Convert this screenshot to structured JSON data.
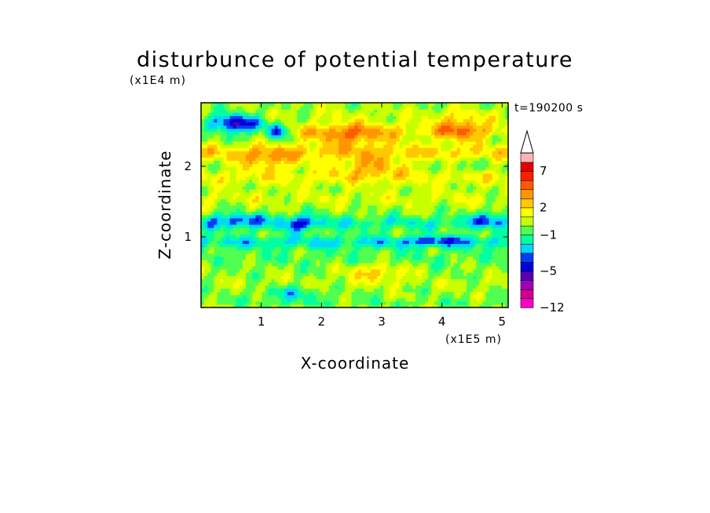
{
  "chart_data": {
    "type": "heatmap",
    "title": "disturbunce of potential temperature",
    "xlabel": "X-coordinate",
    "ylabel": "Z-coordinate",
    "x_unit": "(x1E5 m)",
    "y_unit": "(x1E4 m)",
    "time_label": "t=190200 s",
    "xlim": [
      0,
      5.1
    ],
    "ylim": [
      0,
      2.9
    ],
    "x_ticks": [
      {
        "value": 1,
        "label": "1"
      },
      {
        "value": 2,
        "label": "2"
      },
      {
        "value": 3,
        "label": "3"
      },
      {
        "value": 4,
        "label": "4"
      },
      {
        "value": 5,
        "label": "5"
      }
    ],
    "y_ticks": [
      {
        "value": 1,
        "label": "1"
      },
      {
        "value": 2,
        "label": "2"
      }
    ],
    "colorbar": {
      "levels": [
        -12,
        -10,
        -8,
        -6,
        -5,
        -4,
        -3,
        -2,
        -1,
        0,
        1,
        2,
        3,
        4,
        5,
        7,
        9,
        11
      ],
      "colors": [
        "#ff00c8",
        "#d3008f",
        "#a000bc",
        "#5a00b4",
        "#0000dc",
        "#0040f0",
        "#00d6ff",
        "#00ffa0",
        "#50ff50",
        "#c8ff00",
        "#ffff00",
        "#ffc800",
        "#ff9600",
        "#ff5a00",
        "#ff1e00",
        "#e60000",
        "#ffb4b4"
      ],
      "extend": "max",
      "tick_labels": [
        {
          "value": -12,
          "label": "−12"
        },
        {
          "value": -5,
          "label": "−5"
        },
        {
          "value": -1,
          "label": "−1"
        },
        {
          "value": 2,
          "label": "2"
        },
        {
          "value": 7,
          "label": "7"
        }
      ]
    },
    "features": [
      {
        "cx": 0.55,
        "cz": 2.6,
        "sx": 0.45,
        "sz": 0.15,
        "amp": -5.5
      },
      {
        "cx": 1.25,
        "cz": 2.5,
        "sx": 0.2,
        "sz": 0.1,
        "amp": -4.5
      },
      {
        "cx": 2.5,
        "cz": 2.45,
        "sx": 0.7,
        "sz": 0.18,
        "amp": 3.2
      },
      {
        "cx": 4.3,
        "cz": 2.55,
        "sx": 0.45,
        "sz": 0.18,
        "amp": 3.5
      },
      {
        "cx": 1.1,
        "cz": 2.1,
        "sx": 0.5,
        "sz": 0.15,
        "amp": 2.4
      },
      {
        "cx": 2.8,
        "cz": 2.0,
        "sx": 0.6,
        "sz": 0.15,
        "amp": 2.4
      },
      {
        "cx": 4.3,
        "cz": 2.0,
        "sx": 0.35,
        "sz": 0.12,
        "amp": -0.8
      },
      {
        "cx": 0.6,
        "cz": 1.25,
        "sx": 0.45,
        "sz": 0.1,
        "amp": -2.5
      },
      {
        "cx": 1.65,
        "cz": 1.2,
        "sx": 0.3,
        "sz": 0.12,
        "amp": -2.5
      },
      {
        "cx": 4.8,
        "cz": 1.25,
        "sx": 0.35,
        "sz": 0.1,
        "amp": -2.2
      },
      {
        "cx": 3.9,
        "cz": 0.95,
        "sx": 0.55,
        "sz": 0.06,
        "amp": -2.2
      },
      {
        "cx": 2.9,
        "cz": 0.5,
        "sx": 0.5,
        "sz": 0.12,
        "amp": 2.3
      },
      {
        "cx": 1.5,
        "cz": 0.2,
        "sx": 0.5,
        "sz": 0.12,
        "amp": -1.8
      }
    ]
  }
}
